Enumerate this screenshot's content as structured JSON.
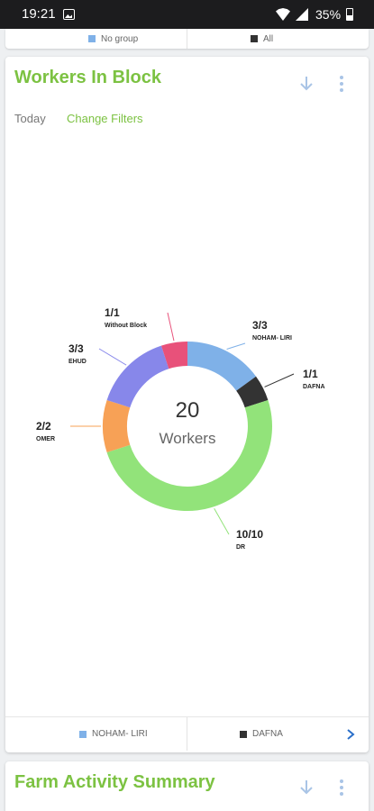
{
  "status_bar": {
    "time": "19:21",
    "battery": "35%"
  },
  "top_legend": [
    {
      "label": "No group",
      "color": "#7fb1e8"
    },
    {
      "label": "All",
      "color": "#333333"
    }
  ],
  "workers_card": {
    "title": "Workers In Block",
    "filter_period": "Today",
    "change_filters": "Change Filters",
    "center_value": "20",
    "center_label": "Workers",
    "bottom_legend": [
      {
        "label": "NOHAM- LIRI",
        "color": "#7fb1e8"
      },
      {
        "label": "DAFNA",
        "color": "#333333"
      }
    ]
  },
  "chart_data": {
    "type": "pie",
    "subtype": "donut",
    "total": 20,
    "center_label": "Workers",
    "slices": [
      {
        "name": "NOHAM- LIRI",
        "value": 3,
        "label": "3/3",
        "color": "#7fb1e8"
      },
      {
        "name": "DAFNA",
        "value": 1,
        "label": "1/1",
        "color": "#333333"
      },
      {
        "name": "DR",
        "value": 10,
        "label": "10/10",
        "color": "#92e37a"
      },
      {
        "name": "OMER",
        "value": 2,
        "label": "2/2",
        "color": "#f7a156"
      },
      {
        "name": "EHUD",
        "value": 3,
        "label": "3/3",
        "color": "#8787ea"
      },
      {
        "name": "Without Block",
        "value": 1,
        "label": "1/1",
        "color": "#e8517a"
      }
    ]
  },
  "farm_card": {
    "title": "Farm Activity Summary"
  }
}
